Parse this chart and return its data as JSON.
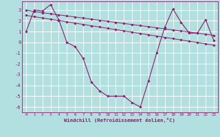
{
  "title": "",
  "xlabel": "Windchill (Refroidissement éolien,°C)",
  "ylabel": "",
  "bg_color": "#b2dfdf",
  "grid_color": "#ffffff",
  "line_color": "#8b1a6b",
  "x": [
    0,
    1,
    2,
    3,
    4,
    5,
    6,
    7,
    8,
    9,
    10,
    11,
    12,
    13,
    14,
    15,
    16,
    17,
    18,
    19,
    20,
    21,
    22,
    23
  ],
  "y_main": [
    1.0,
    3.0,
    2.9,
    3.5,
    2.1,
    0.0,
    -0.4,
    -1.5,
    -3.7,
    -4.5,
    -5.0,
    -5.0,
    -5.0,
    -5.6,
    -6.0,
    -3.6,
    -1.0,
    1.4,
    3.1,
    1.85,
    0.85,
    0.85,
    2.1,
    0.2
  ],
  "y_line1": [
    3.0,
    2.85,
    2.75,
    2.65,
    2.55,
    2.45,
    2.35,
    2.25,
    2.15,
    2.05,
    1.95,
    1.85,
    1.75,
    1.65,
    1.55,
    1.45,
    1.35,
    1.25,
    1.15,
    1.05,
    0.95,
    0.85,
    0.75,
    0.65
  ],
  "y_line2": [
    2.5,
    2.38,
    2.26,
    2.14,
    2.02,
    1.9,
    1.78,
    1.66,
    1.54,
    1.42,
    1.3,
    1.18,
    1.06,
    0.94,
    0.82,
    0.7,
    0.58,
    0.46,
    0.34,
    0.22,
    0.1,
    -0.02,
    -0.14,
    -0.26
  ],
  "ylim": [
    -6.5,
    3.8
  ],
  "xlim": [
    -0.5,
    23.5
  ],
  "yticks": [
    -6,
    -5,
    -4,
    -3,
    -2,
    -1,
    0,
    1,
    2,
    3
  ],
  "xticks": [
    0,
    1,
    2,
    3,
    4,
    5,
    6,
    7,
    8,
    9,
    10,
    11,
    12,
    13,
    14,
    15,
    16,
    17,
    18,
    19,
    20,
    21,
    22,
    23
  ]
}
